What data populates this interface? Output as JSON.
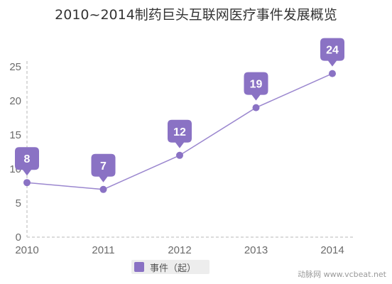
{
  "chart_data": {
    "type": "line",
    "title": "2010~2014制药巨头互联网医疗事件发展概览",
    "categories": [
      "2010",
      "2011",
      "2012",
      "2013",
      "2014"
    ],
    "series": [
      {
        "name": "事件（起）",
        "values": [
          8,
          7,
          12,
          19,
          24
        ]
      }
    ],
    "xlabel": "",
    "ylabel": "",
    "ylim": [
      0,
      25
    ],
    "yticks": [
      0,
      5,
      10,
      15,
      20,
      25
    ],
    "grid": false,
    "legend": "bottom",
    "colors": {
      "line": "#9b87cf",
      "bubble": "#8a72c4",
      "axis": "#cfcfcf"
    }
  },
  "watermark": "动脉网 www.vcbeat.net"
}
